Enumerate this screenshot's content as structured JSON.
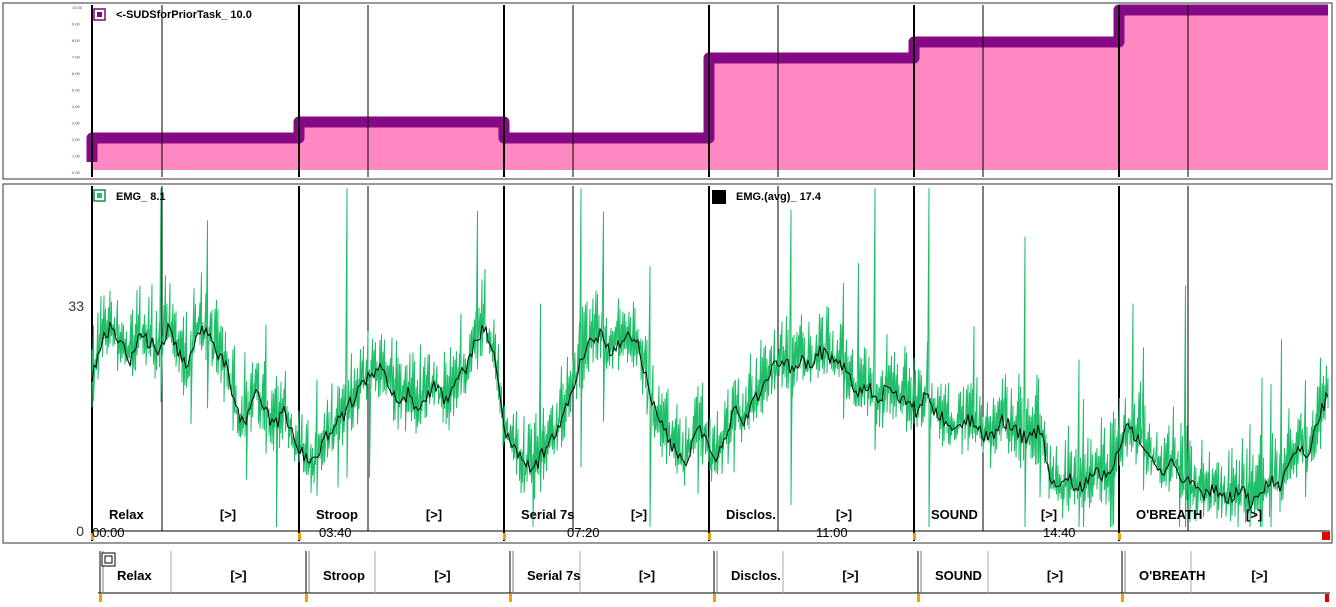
{
  "chart_data": [
    {
      "type": "area",
      "legend": "<-SUDSforPriorTask_ 10.0",
      "legend_color": "#7a0a7a",
      "fill_color": "#ff88c2",
      "line_color": "#860a86",
      "ylim": [
        0,
        10
      ],
      "y_ticks": [
        "10.00",
        "9.00",
        "8.00",
        "7.00",
        "6.00",
        "5.00",
        "4.00",
        "3.00",
        "2.00",
        "1.00",
        "0.00"
      ],
      "steps": [
        {
          "segment": "Relax",
          "value": 2.0
        },
        {
          "segment": "Stroop",
          "value": 3.0
        },
        {
          "segment": "Serial 7s",
          "value": 2.0
        },
        {
          "segment": "Disclos.",
          "value": 7.0
        },
        {
          "segment": "SOUND",
          "value": 8.0
        },
        {
          "segment": "O'BREATH",
          "value": 10.0
        }
      ]
    },
    {
      "type": "line",
      "ylim": [
        0,
        40
      ],
      "y_ticks": [
        "33",
        "0"
      ],
      "series": [
        {
          "name": "EMG_ 8.1",
          "color": "#1fbf6a"
        },
        {
          "name": "EMG.(avg)_ 17.4",
          "color": "#000000"
        }
      ],
      "segments": [
        "Relax",
        "Stroop",
        "Serial 7s",
        "Disclos.",
        "SOUND",
        "O'BREATH"
      ],
      "segment_marker": "[>]",
      "time_labels": [
        "00:00",
        "03:40",
        "07:20",
        "11:00",
        "14:40"
      ],
      "avg_profile": [
        [
          0,
          18
        ],
        [
          1,
          22
        ],
        [
          2,
          24
        ],
        [
          3,
          22
        ],
        [
          4,
          20
        ],
        [
          5,
          23
        ],
        [
          6,
          22
        ],
        [
          7,
          21
        ],
        [
          8,
          24
        ],
        [
          9,
          21
        ],
        [
          10,
          19
        ],
        [
          11,
          24
        ],
        [
          12,
          23
        ],
        [
          13,
          21
        ],
        [
          14,
          19
        ],
        [
          15,
          14
        ],
        [
          16,
          12
        ],
        [
          17,
          17
        ],
        [
          18,
          14
        ],
        [
          19,
          12
        ],
        [
          20,
          14
        ],
        [
          21,
          11
        ],
        [
          22,
          9
        ],
        [
          23,
          8
        ],
        [
          24,
          10
        ],
        [
          25,
          12
        ],
        [
          26,
          13
        ],
        [
          27,
          15
        ],
        [
          28,
          17
        ],
        [
          29,
          18
        ],
        [
          30,
          19
        ],
        [
          31,
          17
        ],
        [
          32,
          15
        ],
        [
          33,
          16
        ],
        [
          34,
          14
        ],
        [
          35,
          16
        ],
        [
          36,
          17
        ],
        [
          37,
          15
        ],
        [
          38,
          17
        ],
        [
          39,
          19
        ],
        [
          40,
          22
        ],
        [
          41,
          24
        ],
        [
          42,
          20
        ],
        [
          43,
          12
        ],
        [
          44,
          10
        ],
        [
          45,
          8
        ],
        [
          46,
          7
        ],
        [
          47,
          9
        ],
        [
          48,
          11
        ],
        [
          49,
          13
        ],
        [
          50,
          16
        ],
        [
          51,
          20
        ],
        [
          52,
          22
        ],
        [
          53,
          23
        ],
        [
          54,
          21
        ],
        [
          55,
          22
        ],
        [
          56,
          23
        ],
        [
          57,
          22
        ],
        [
          58,
          17
        ],
        [
          59,
          13
        ],
        [
          60,
          11
        ],
        [
          61,
          9
        ],
        [
          62,
          8
        ],
        [
          63,
          12
        ],
        [
          64,
          11
        ],
        [
          65,
          8
        ],
        [
          66,
          11
        ],
        [
          67,
          14
        ],
        [
          68,
          13
        ],
        [
          69,
          15
        ],
        [
          70,
          17
        ],
        [
          71,
          19
        ],
        [
          72,
          20
        ],
        [
          73,
          19
        ],
        [
          74,
          20
        ],
        [
          75,
          19
        ],
        [
          76,
          21
        ],
        [
          77,
          20
        ],
        [
          78,
          20
        ],
        [
          79,
          18
        ],
        [
          80,
          16
        ],
        [
          81,
          17
        ],
        [
          82,
          15
        ],
        [
          83,
          17
        ],
        [
          84,
          16
        ],
        [
          85,
          15
        ],
        [
          86,
          14
        ],
        [
          87,
          16
        ],
        [
          88,
          14
        ],
        [
          89,
          13
        ],
        [
          90,
          12
        ],
        [
          91,
          13
        ],
        [
          92,
          13
        ],
        [
          93,
          11
        ],
        [
          94,
          11
        ],
        [
          95,
          13
        ],
        [
          96,
          12
        ],
        [
          97,
          11
        ],
        [
          98,
          11
        ],
        [
          99,
          12
        ],
        [
          100,
          6
        ],
        [
          101,
          5
        ],
        [
          102,
          6
        ],
        [
          103,
          5
        ],
        [
          104,
          6
        ],
        [
          105,
          7
        ],
        [
          106,
          6
        ],
        [
          107,
          9
        ],
        [
          108,
          12
        ],
        [
          109,
          11
        ],
        [
          110,
          10
        ],
        [
          111,
          8
        ],
        [
          112,
          7
        ],
        [
          113,
          8
        ],
        [
          114,
          6
        ],
        [
          115,
          5
        ],
        [
          116,
          4
        ],
        [
          117,
          5
        ],
        [
          118,
          4
        ],
        [
          119,
          4
        ],
        [
          120,
          5
        ],
        [
          121,
          3
        ],
        [
          122,
          4
        ],
        [
          123,
          6
        ],
        [
          124,
          5
        ],
        [
          125,
          8
        ],
        [
          126,
          10
        ],
        [
          127,
          9
        ],
        [
          128,
          13
        ],
        [
          129,
          16
        ]
      ]
    }
  ],
  "bottom_bar": {
    "segments": [
      "Relax",
      "Stroop",
      "Serial 7s",
      "Disclos.",
      "SOUND",
      "O'BREATH"
    ],
    "marker": "[>]"
  },
  "colors": {
    "accent_purple": "#860a86",
    "pink_fill": "#ff88c2",
    "emg_green": "#1fbf6a",
    "grid": "#000000"
  }
}
